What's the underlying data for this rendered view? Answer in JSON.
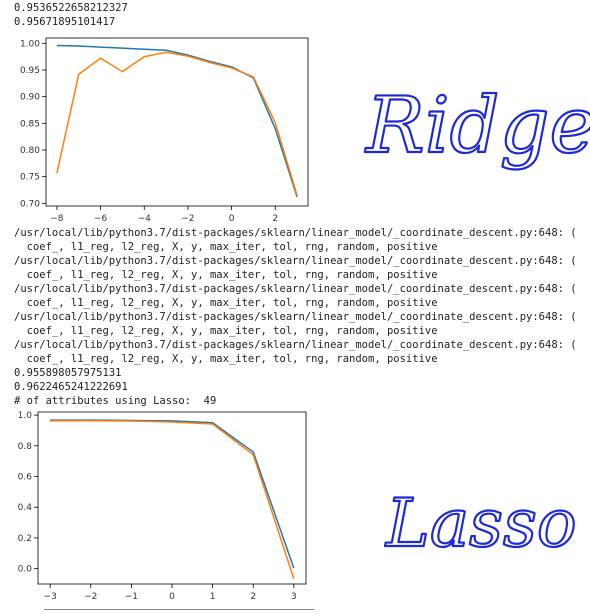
{
  "output": {
    "top_lines": [
      "0.9536522658212327",
      "0.95671895101417"
    ],
    "warning_lines": [
      "/usr/local/lib/python3.7/dist-packages/sklearn/linear_model/_coordinate_descent.py:648: (",
      "  coef_, l1_reg, l2_reg, X, y, max_iter, tol, rng, random, positive",
      "/usr/local/lib/python3.7/dist-packages/sklearn/linear_model/_coordinate_descent.py:648: (",
      "  coef_, l1_reg, l2_reg, X, y, max_iter, tol, rng, random, positive",
      "/usr/local/lib/python3.7/dist-packages/sklearn/linear_model/_coordinate_descent.py:648: (",
      "  coef_, l1_reg, l2_reg, X, y, max_iter, tol, rng, random, positive",
      "/usr/local/lib/python3.7/dist-packages/sklearn/linear_model/_coordinate_descent.py:648: (",
      "  coef_, l1_reg, l2_reg, X, y, max_iter, tol, rng, random, positive",
      "/usr/local/lib/python3.7/dist-packages/sklearn/linear_model/_coordinate_descent.py:648: (",
      "  coef_, l1_reg, l2_reg, X, y, max_iter, tol, rng, random, positive"
    ],
    "score_lines": [
      "0.955898057975131",
      "0.9622465241222691",
      "# of attributes using Lasso:  49"
    ]
  },
  "annotations": {
    "ridge_note": "Ridge",
    "lasso_note": "Lasso"
  },
  "chart_data": [
    {
      "type": "line",
      "title": "",
      "xlabel": "",
      "ylabel": "",
      "x": [
        -8,
        -7,
        -6,
        -5,
        -4,
        -3,
        -2,
        -1,
        0,
        1,
        2,
        3
      ],
      "xlim": [
        -8.5,
        3.5
      ],
      "ylim": [
        0.695,
        1.01
      ],
      "xticks": [
        -8,
        -6,
        -4,
        -2,
        0,
        2
      ],
      "yticks": [
        0.7,
        0.75,
        0.8,
        0.85,
        0.9,
        0.95,
        1.0
      ],
      "ytick_labels": [
        "0.70",
        "0.75",
        "0.80",
        "0.85",
        "0.90",
        "0.95",
        "1.00"
      ],
      "grid": false,
      "series": [
        {
          "color": "#1f77b4",
          "values": [
            0.996,
            0.995,
            0.993,
            0.991,
            0.989,
            0.987,
            0.978,
            0.966,
            0.956,
            0.935,
            0.84,
            0.712
          ]
        },
        {
          "color": "#ff7f0e",
          "values": [
            0.757,
            0.942,
            0.972,
            0.947,
            0.975,
            0.983,
            0.976,
            0.964,
            0.954,
            0.937,
            0.851,
            0.715
          ]
        }
      ]
    },
    {
      "type": "line",
      "title": "",
      "xlabel": "",
      "ylabel": "",
      "x": [
        -3,
        -2,
        -1,
        0,
        1,
        2,
        3
      ],
      "xlim": [
        -3.3,
        3.3
      ],
      "ylim": [
        -0.1,
        1.02
      ],
      "xticks": [
        -3,
        -2,
        -1,
        0,
        1,
        2,
        3
      ],
      "yticks": [
        0.0,
        0.2,
        0.4,
        0.6,
        0.8,
        1.0
      ],
      "ytick_labels": [
        "0.0",
        "0.2",
        "0.4",
        "0.6",
        "0.8",
        "1.0"
      ],
      "grid": false,
      "series": [
        {
          "color": "#1f77b4",
          "values": [
            0.967,
            0.967,
            0.965,
            0.962,
            0.95,
            0.76,
            0.003
          ]
        },
        {
          "color": "#ff7f0e",
          "values": [
            0.962,
            0.963,
            0.961,
            0.955,
            0.942,
            0.742,
            -0.065
          ]
        }
      ]
    }
  ]
}
